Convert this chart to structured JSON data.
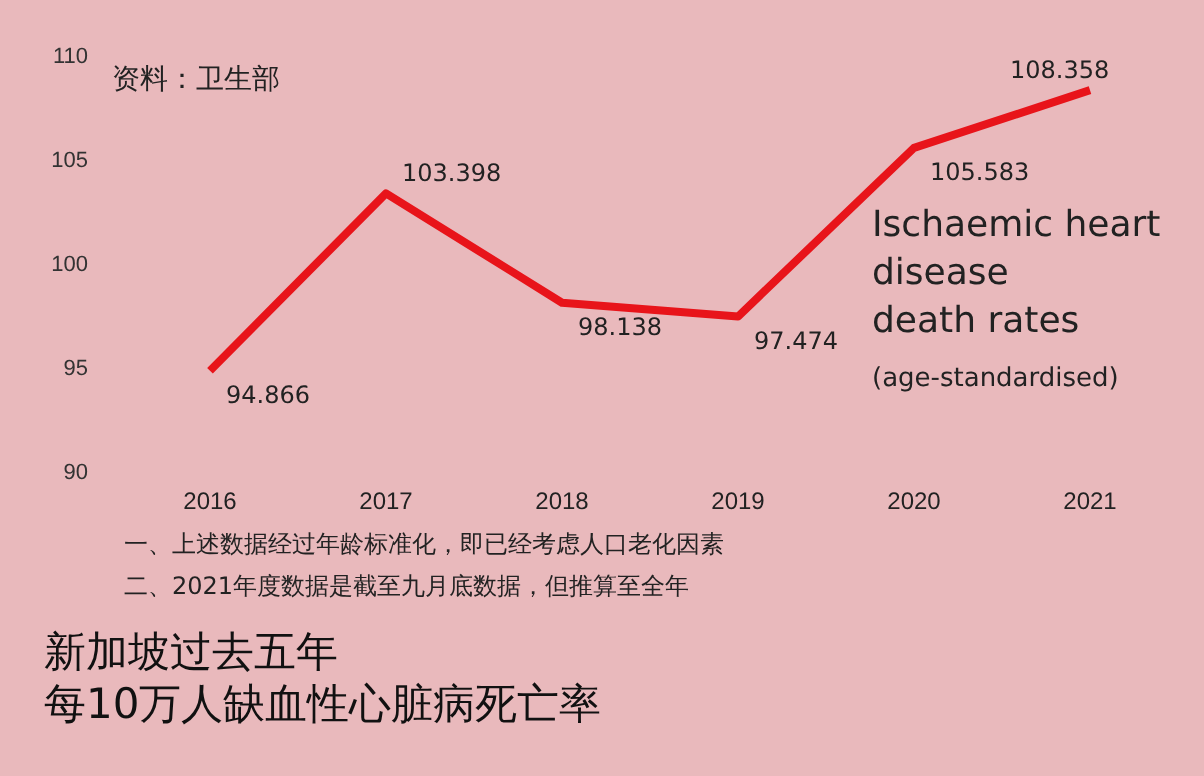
{
  "chart_data": {
    "type": "line",
    "title": "新加坡过去五年每10万人缺血性心脏病死亡率",
    "subtitle": "Ischaemic heart\ndisease\ndeath rates",
    "annotations": [
      "资料：卫生部",
      "(age-standardised)",
      "一、上述数据经过年龄标准化，即已经考虑人口老化因素",
      "二、2021年度数据是截至九月底数据，但推算至全年"
    ],
    "categories": [
      "2016",
      "2017",
      "2018",
      "2019",
      "2020",
      "2021"
    ],
    "series": [
      {
        "color": "#e8141a",
        "values": [
          94.866,
          103.398,
          98.138,
          97.474,
          105.583,
          108.358
        ]
      }
    ],
    "ylim": [
      90,
      110
    ],
    "yticks": [
      90,
      95,
      100,
      105,
      110
    ],
    "data_labels": true,
    "marker": "none",
    "line_style": "solid",
    "grid": false
  }
}
